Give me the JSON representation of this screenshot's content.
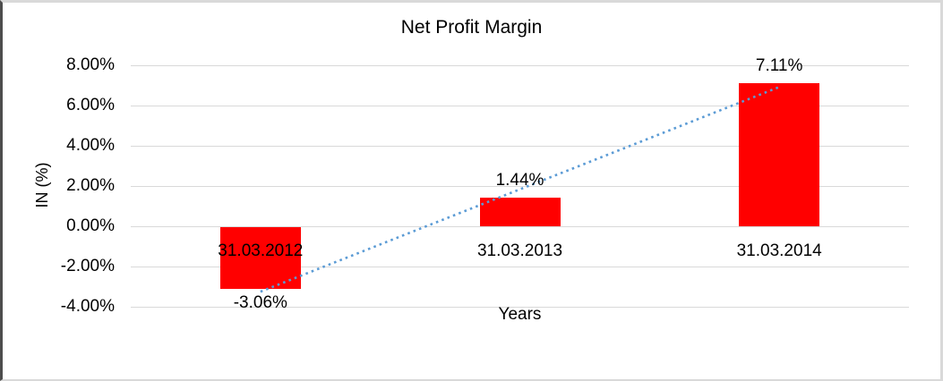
{
  "chart_data": {
    "type": "bar",
    "title": "Net Profit Margin",
    "xlabel": "Years",
    "ylabel": "IN (%)",
    "categories": [
      "31.03.2012",
      "31.03.2013",
      "31.03.2014"
    ],
    "values": [
      -3.06,
      1.44,
      7.11
    ],
    "data_labels": [
      "-3.06%",
      "1.44%",
      "7.11%"
    ],
    "ylim": [
      -4,
      8
    ],
    "ytick_step": 2,
    "ytick_labels": [
      "8.00%",
      "6.00%",
      "4.00%",
      "2.00%",
      "0.00%",
      "-2.00%",
      "-4.00%"
    ],
    "grid": true,
    "legend": "none",
    "bar_color": "#ff0000",
    "gridline_color": "#d9d9d9",
    "trendline": {
      "type": "linear",
      "style": "dotted",
      "color": "#5b9bd5",
      "start_value": -3.25,
      "end_value": 6.92
    }
  }
}
